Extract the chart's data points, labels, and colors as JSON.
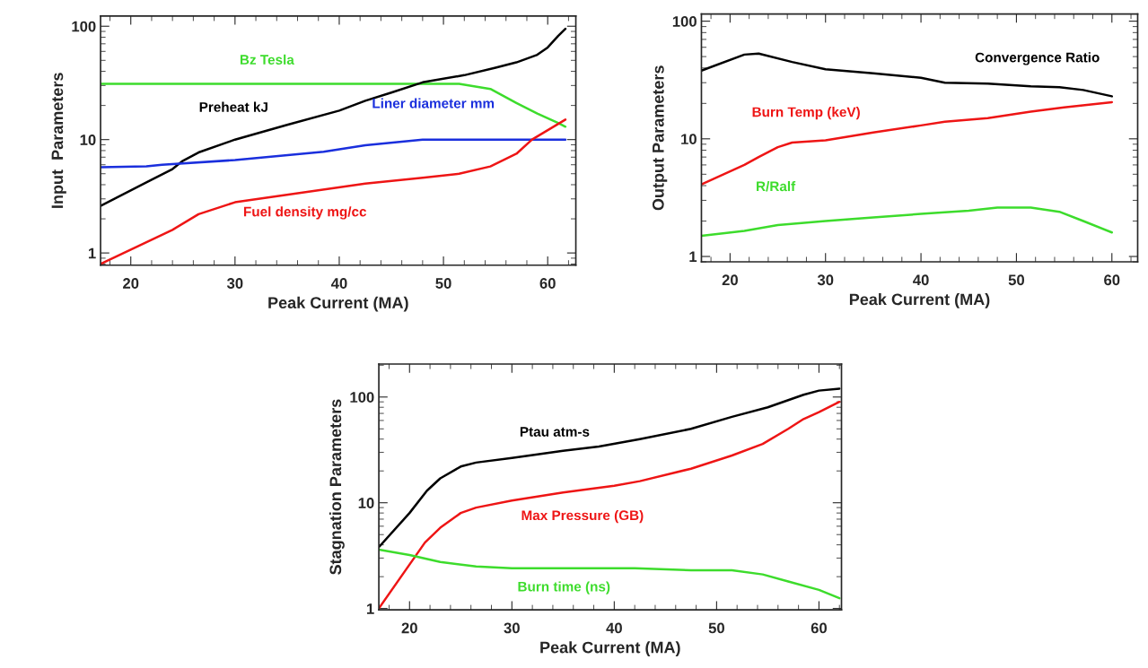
{
  "chart_data": [
    {
      "type": "line",
      "xlabel": "Peak Current (MA)",
      "ylabel": "Input  Parameters",
      "log": "y",
      "xlim": [
        17.1,
        62.7
      ],
      "xticks": [
        20,
        30,
        40,
        50,
        60
      ],
      "ylim": [
        0.78,
        123
      ],
      "yticks": [
        1,
        10,
        100
      ],
      "series": [
        {
          "name": "Bz Tesla",
          "color": "#3ddc2c",
          "x": [
            17.1,
            51.5,
            54.5,
            57,
            59,
            61,
            61.7
          ],
          "values": [
            31,
            31,
            28,
            21,
            17,
            14,
            13
          ]
        },
        {
          "name": "Preheat kJ",
          "color": "#000000",
          "x": [
            17.1,
            21.5,
            24,
            25,
            26.5,
            30,
            35,
            40,
            42.5,
            45,
            48,
            52,
            55,
            57,
            59,
            60,
            61,
            61.7
          ],
          "values": [
            2.6,
            4.2,
            5.5,
            6.5,
            7.7,
            10,
            13.5,
            18,
            22,
            26,
            32,
            37,
            43,
            48,
            56,
            65,
            82,
            95
          ]
        },
        {
          "name": "Liner diameter mm",
          "color": "#1a2fdd",
          "x": [
            17.1,
            21.5,
            23,
            30,
            38.5,
            42.5,
            48,
            61.7
          ],
          "values": [
            5.7,
            5.8,
            6,
            6.6,
            7.8,
            8.9,
            10,
            10
          ]
        },
        {
          "name": "Fuel density mg/cc",
          "color": "#ee1515",
          "x": [
            17.1,
            24,
            26.5,
            30,
            42.5,
            48,
            51.5,
            54.5,
            57,
            58.5,
            61.7
          ],
          "values": [
            0.8,
            1.6,
            2.2,
            2.8,
            4.1,
            4.6,
            5,
            5.8,
            7.5,
            10,
            15
          ]
        }
      ]
    },
    {
      "type": "line",
      "xlabel": "Peak Current (MA)",
      "ylabel": "Output Parameters",
      "log": "y",
      "xlim": [
        17,
        62.7
      ],
      "xticks": [
        20,
        30,
        40,
        50,
        60
      ],
      "ylim": [
        0.9,
        115
      ],
      "yticks": [
        1,
        10,
        100
      ],
      "series": [
        {
          "name": "Convergence Ratio",
          "color": "#000000",
          "x": [
            17,
            21.5,
            23,
            26.5,
            30,
            35,
            40,
            42.5,
            47,
            51.5,
            54.5,
            57,
            60
          ],
          "values": [
            38,
            52,
            53,
            45,
            39,
            36,
            33,
            30,
            29.5,
            28,
            27.5,
            26,
            23
          ]
        },
        {
          "name": "Burn Temp (keV)",
          "color": "#ee1515",
          "x": [
            17,
            21.5,
            23,
            25,
            26.5,
            30,
            35,
            40,
            42.5,
            47,
            51.5,
            55,
            60
          ],
          "values": [
            4.1,
            6,
            7,
            8.5,
            9.3,
            9.7,
            11.3,
            13,
            14,
            15,
            17,
            18.5,
            20.5
          ]
        },
        {
          "name": "R/Ralf",
          "color": "#3ddc2c",
          "x": [
            17,
            21.5,
            25,
            30,
            35,
            40,
            45,
            48,
            51.5,
            54.5,
            57,
            60
          ],
          "values": [
            1.5,
            1.65,
            1.85,
            2.0,
            2.15,
            2.3,
            2.45,
            2.6,
            2.6,
            2.4,
            2.0,
            1.6
          ]
        }
      ]
    },
    {
      "type": "line",
      "xlabel": "Peak Current (MA)",
      "ylabel": "Stagnation Parameters",
      "log": "y",
      "xlim": [
        17,
        62.2
      ],
      "xticks": [
        20,
        30,
        40,
        50,
        60
      ],
      "ylim": [
        0.97,
        205
      ],
      "yticks": [
        1,
        10,
        100
      ],
      "series": [
        {
          "name": "Ptau atm-s",
          "color": "#000000",
          "x": [
            17,
            20,
            21.7,
            23,
            25,
            26.5,
            30,
            35,
            38.5,
            42.5,
            47.5,
            51.5,
            55,
            58.5,
            60,
            62
          ],
          "values": [
            3.8,
            8,
            13,
            17,
            22,
            24,
            26.5,
            31,
            34,
            40,
            50,
            65,
            80,
            105,
            115,
            120
          ]
        },
        {
          "name": "Max Pressure (GB)",
          "color": "#ee1515",
          "x": [
            17,
            21.5,
            23,
            25,
            26.5,
            30,
            35,
            40,
            42.5,
            47.5,
            51.5,
            54.5,
            57,
            58.5,
            60,
            62
          ],
          "values": [
            1.0,
            4.2,
            5.8,
            8,
            9,
            10.5,
            12.5,
            14.5,
            16,
            21,
            28,
            36,
            50,
            62,
            72,
            90
          ]
        },
        {
          "name": "Burn time (ns)",
          "color": "#3ddc2c",
          "x": [
            17,
            20,
            23,
            26.5,
            30,
            42,
            47.5,
            51.5,
            54.5,
            57,
            60,
            62
          ],
          "values": [
            3.6,
            3.2,
            2.75,
            2.5,
            2.4,
            2.4,
            2.3,
            2.3,
            2.1,
            1.8,
            1.5,
            1.25
          ]
        }
      ]
    }
  ]
}
